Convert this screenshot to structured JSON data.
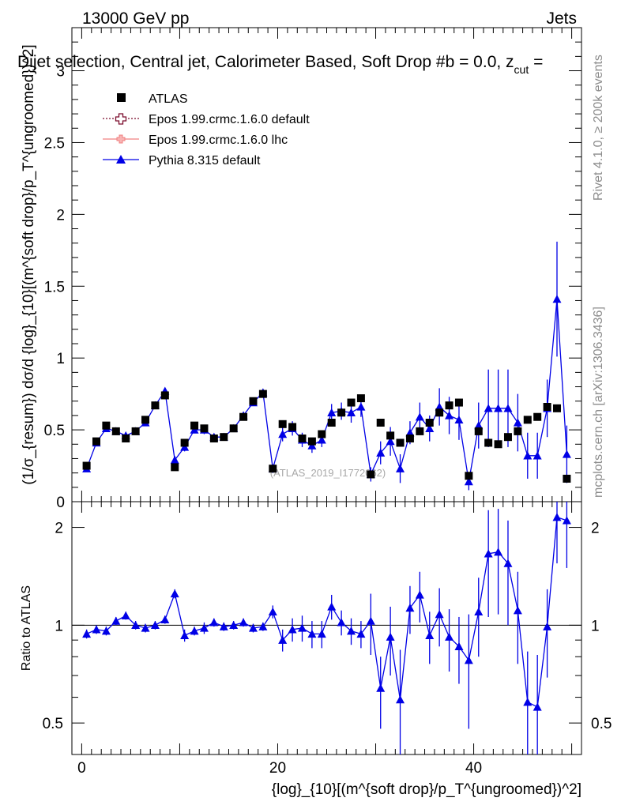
{
  "header": {
    "energy_label": "13000 GeV pp",
    "process_label": "Jets",
    "title": "Dijet selection, Central jet, Calorimeter Based, Soft Drop #b = 0.0, z_cut =",
    "title_main": "Dijet selection, Central jet, Calorimeter Based, Soft Drop #b = 0.0, z",
    "title_sub": "cut",
    "title_tail": " ="
  },
  "side_labels": {
    "rivet": "Rivet 4.1.0, ≥ 200k events",
    "mcplots": "mcplots.cern.ch [arXiv:1306.3436]"
  },
  "watermark": "(ATLAS_2019_I1772062)",
  "axes": {
    "ylabel_main": "(1/σ_{resum}) dσ/d {log}_{10}[(m^{soft drop}/p_T^{ungroomed})^2]",
    "ylabel_ratio": "Ratio to ATLAS",
    "xlabel": "{log}_{10}[(m^{soft drop}/p_T^{ungroomed})^2]",
    "main_yticks": [
      "0",
      "0.5",
      "1",
      "1.5",
      "2",
      "2.5",
      "3"
    ],
    "ratio_yticks": [
      "0.5",
      "1",
      "2"
    ],
    "xticks": [
      "0",
      "20",
      "40"
    ]
  },
  "legend": [
    {
      "label": "ATLAS",
      "color": "#000000",
      "marker": "square"
    },
    {
      "label": "Epos 1.99.crmc.1.6.0 default",
      "color": "#7b0c2c",
      "marker": "open-cross"
    },
    {
      "label": "Epos 1.99.crmc.1.6.0 lhc",
      "color": "#f08080",
      "marker": "cross"
    },
    {
      "label": "Pythia 8.315 default",
      "color": "#0000e6",
      "marker": "triangle"
    }
  ],
  "chart_data": [
    {
      "type": "scatter",
      "panel": "main",
      "xlim": [
        -1,
        51
      ],
      "ylim": [
        0,
        3.3
      ],
      "x": [
        0.5,
        1.5,
        2.5,
        3.5,
        4.5,
        5.5,
        6.5,
        7.5,
        8.5,
        9.5,
        10.5,
        11.5,
        12.5,
        13.5,
        14.5,
        15.5,
        16.5,
        17.5,
        18.5,
        19.5,
        20.5,
        21.5,
        22.5,
        23.5,
        24.5,
        25.5,
        26.5,
        27.5,
        28.5,
        29.5,
        30.5,
        31.5,
        32.5,
        33.5,
        34.5,
        35.5,
        36.5,
        37.5,
        38.5,
        39.5,
        40.5,
        41.5,
        42.5,
        43.5,
        44.5,
        45.5,
        46.5,
        47.5,
        48.5,
        49.5
      ],
      "series": [
        {
          "name": "ATLAS",
          "values": [
            0.25,
            0.42,
            0.53,
            0.49,
            0.44,
            0.49,
            0.57,
            0.67,
            0.74,
            0.24,
            0.41,
            0.53,
            0.51,
            0.44,
            0.45,
            0.51,
            0.59,
            0.7,
            0.75,
            0.23,
            0.54,
            0.52,
            0.44,
            0.42,
            0.47,
            0.55,
            0.62,
            0.69,
            0.72,
            0.19,
            0.55,
            0.46,
            0.41,
            0.44,
            0.49,
            0.55,
            0.62,
            0.67,
            0.69,
            0.18,
            0.49,
            0.41,
            0.4,
            0.45,
            0.49,
            0.57,
            0.59,
            0.66,
            0.65,
            0.16
          ]
        },
        {
          "name": "Pythia 8.315 default",
          "values": [
            0.23,
            0.41,
            0.51,
            0.49,
            0.46,
            0.49,
            0.55,
            0.67,
            0.77,
            0.29,
            0.38,
            0.5,
            0.5,
            0.45,
            0.45,
            0.51,
            0.6,
            0.69,
            0.76,
            0.23,
            0.47,
            0.51,
            0.43,
            0.39,
            0.43,
            0.62,
            0.63,
            0.62,
            0.66,
            0.19,
            0.34,
            0.42,
            0.23,
            0.48,
            0.59,
            0.51,
            0.66,
            0.6,
            0.57,
            0.14,
            0.53,
            0.65,
            0.65,
            0.65,
            0.55,
            0.32,
            0.32,
            0.65,
            1.41,
            0.33
          ],
          "errors": [
            0.02,
            0.02,
            0.02,
            0.02,
            0.02,
            0.02,
            0.02,
            0.02,
            0.02,
            0.02,
            0.03,
            0.02,
            0.03,
            0.02,
            0.02,
            0.02,
            0.02,
            0.02,
            0.02,
            0.03,
            0.05,
            0.05,
            0.05,
            0.05,
            0.05,
            0.06,
            0.06,
            0.07,
            0.07,
            0.05,
            0.08,
            0.1,
            0.1,
            0.08,
            0.1,
            0.09,
            0.13,
            0.13,
            0.14,
            0.06,
            0.16,
            0.27,
            0.27,
            0.27,
            0.2,
            0.16,
            0.16,
            0.2,
            0.4,
            0.2
          ]
        }
      ]
    },
    {
      "type": "scatter",
      "panel": "ratio",
      "xlim": [
        -1,
        51
      ],
      "yscale": "log",
      "ylim": [
        0.4,
        2.4
      ],
      "reference_line": 1,
      "x": [
        0.5,
        1.5,
        2.5,
        3.5,
        4.5,
        5.5,
        6.5,
        7.5,
        8.5,
        9.5,
        10.5,
        11.5,
        12.5,
        13.5,
        14.5,
        15.5,
        16.5,
        17.5,
        18.5,
        19.5,
        20.5,
        21.5,
        22.5,
        23.5,
        24.5,
        25.5,
        26.5,
        27.5,
        28.5,
        29.5,
        30.5,
        31.5,
        32.5,
        33.5,
        34.5,
        35.5,
        36.5,
        37.5,
        38.5,
        39.5,
        40.5,
        41.5,
        42.5,
        43.5,
        44.5,
        45.5,
        46.5,
        47.5,
        48.5,
        49.5
      ],
      "series": [
        {
          "name": "Pythia 8.315 default / ATLAS",
          "values": [
            0.94,
            0.97,
            0.96,
            1.03,
            1.07,
            1.0,
            0.98,
            1.0,
            1.04,
            1.25,
            0.93,
            0.96,
            0.98,
            1.02,
            0.99,
            1.0,
            1.02,
            0.98,
            0.99,
            1.1,
            0.9,
            0.97,
            0.98,
            0.94,
            0.94,
            1.14,
            1.02,
            0.96,
            0.94,
            1.03,
            0.64,
            0.92,
            0.59,
            1.13,
            1.24,
            0.93,
            1.08,
            0.92,
            0.86,
            0.78,
            1.1,
            1.66,
            1.68,
            1.55,
            1.11,
            0.58,
            0.56,
            0.99,
            2.15,
            2.1
          ],
          "errors": [
            0.03,
            0.03,
            0.03,
            0.03,
            0.03,
            0.03,
            0.03,
            0.03,
            0.03,
            0.04,
            0.04,
            0.03,
            0.04,
            0.03,
            0.03,
            0.03,
            0.03,
            0.03,
            0.03,
            0.05,
            0.07,
            0.08,
            0.09,
            0.09,
            0.09,
            0.1,
            0.09,
            0.09,
            0.09,
            0.22,
            0.16,
            0.22,
            0.25,
            0.19,
            0.22,
            0.17,
            0.22,
            0.2,
            0.2,
            0.3,
            0.3,
            0.6,
            0.6,
            0.55,
            0.35,
            0.25,
            0.25,
            0.3,
            0.6,
            0.6
          ]
        }
      ]
    }
  ]
}
